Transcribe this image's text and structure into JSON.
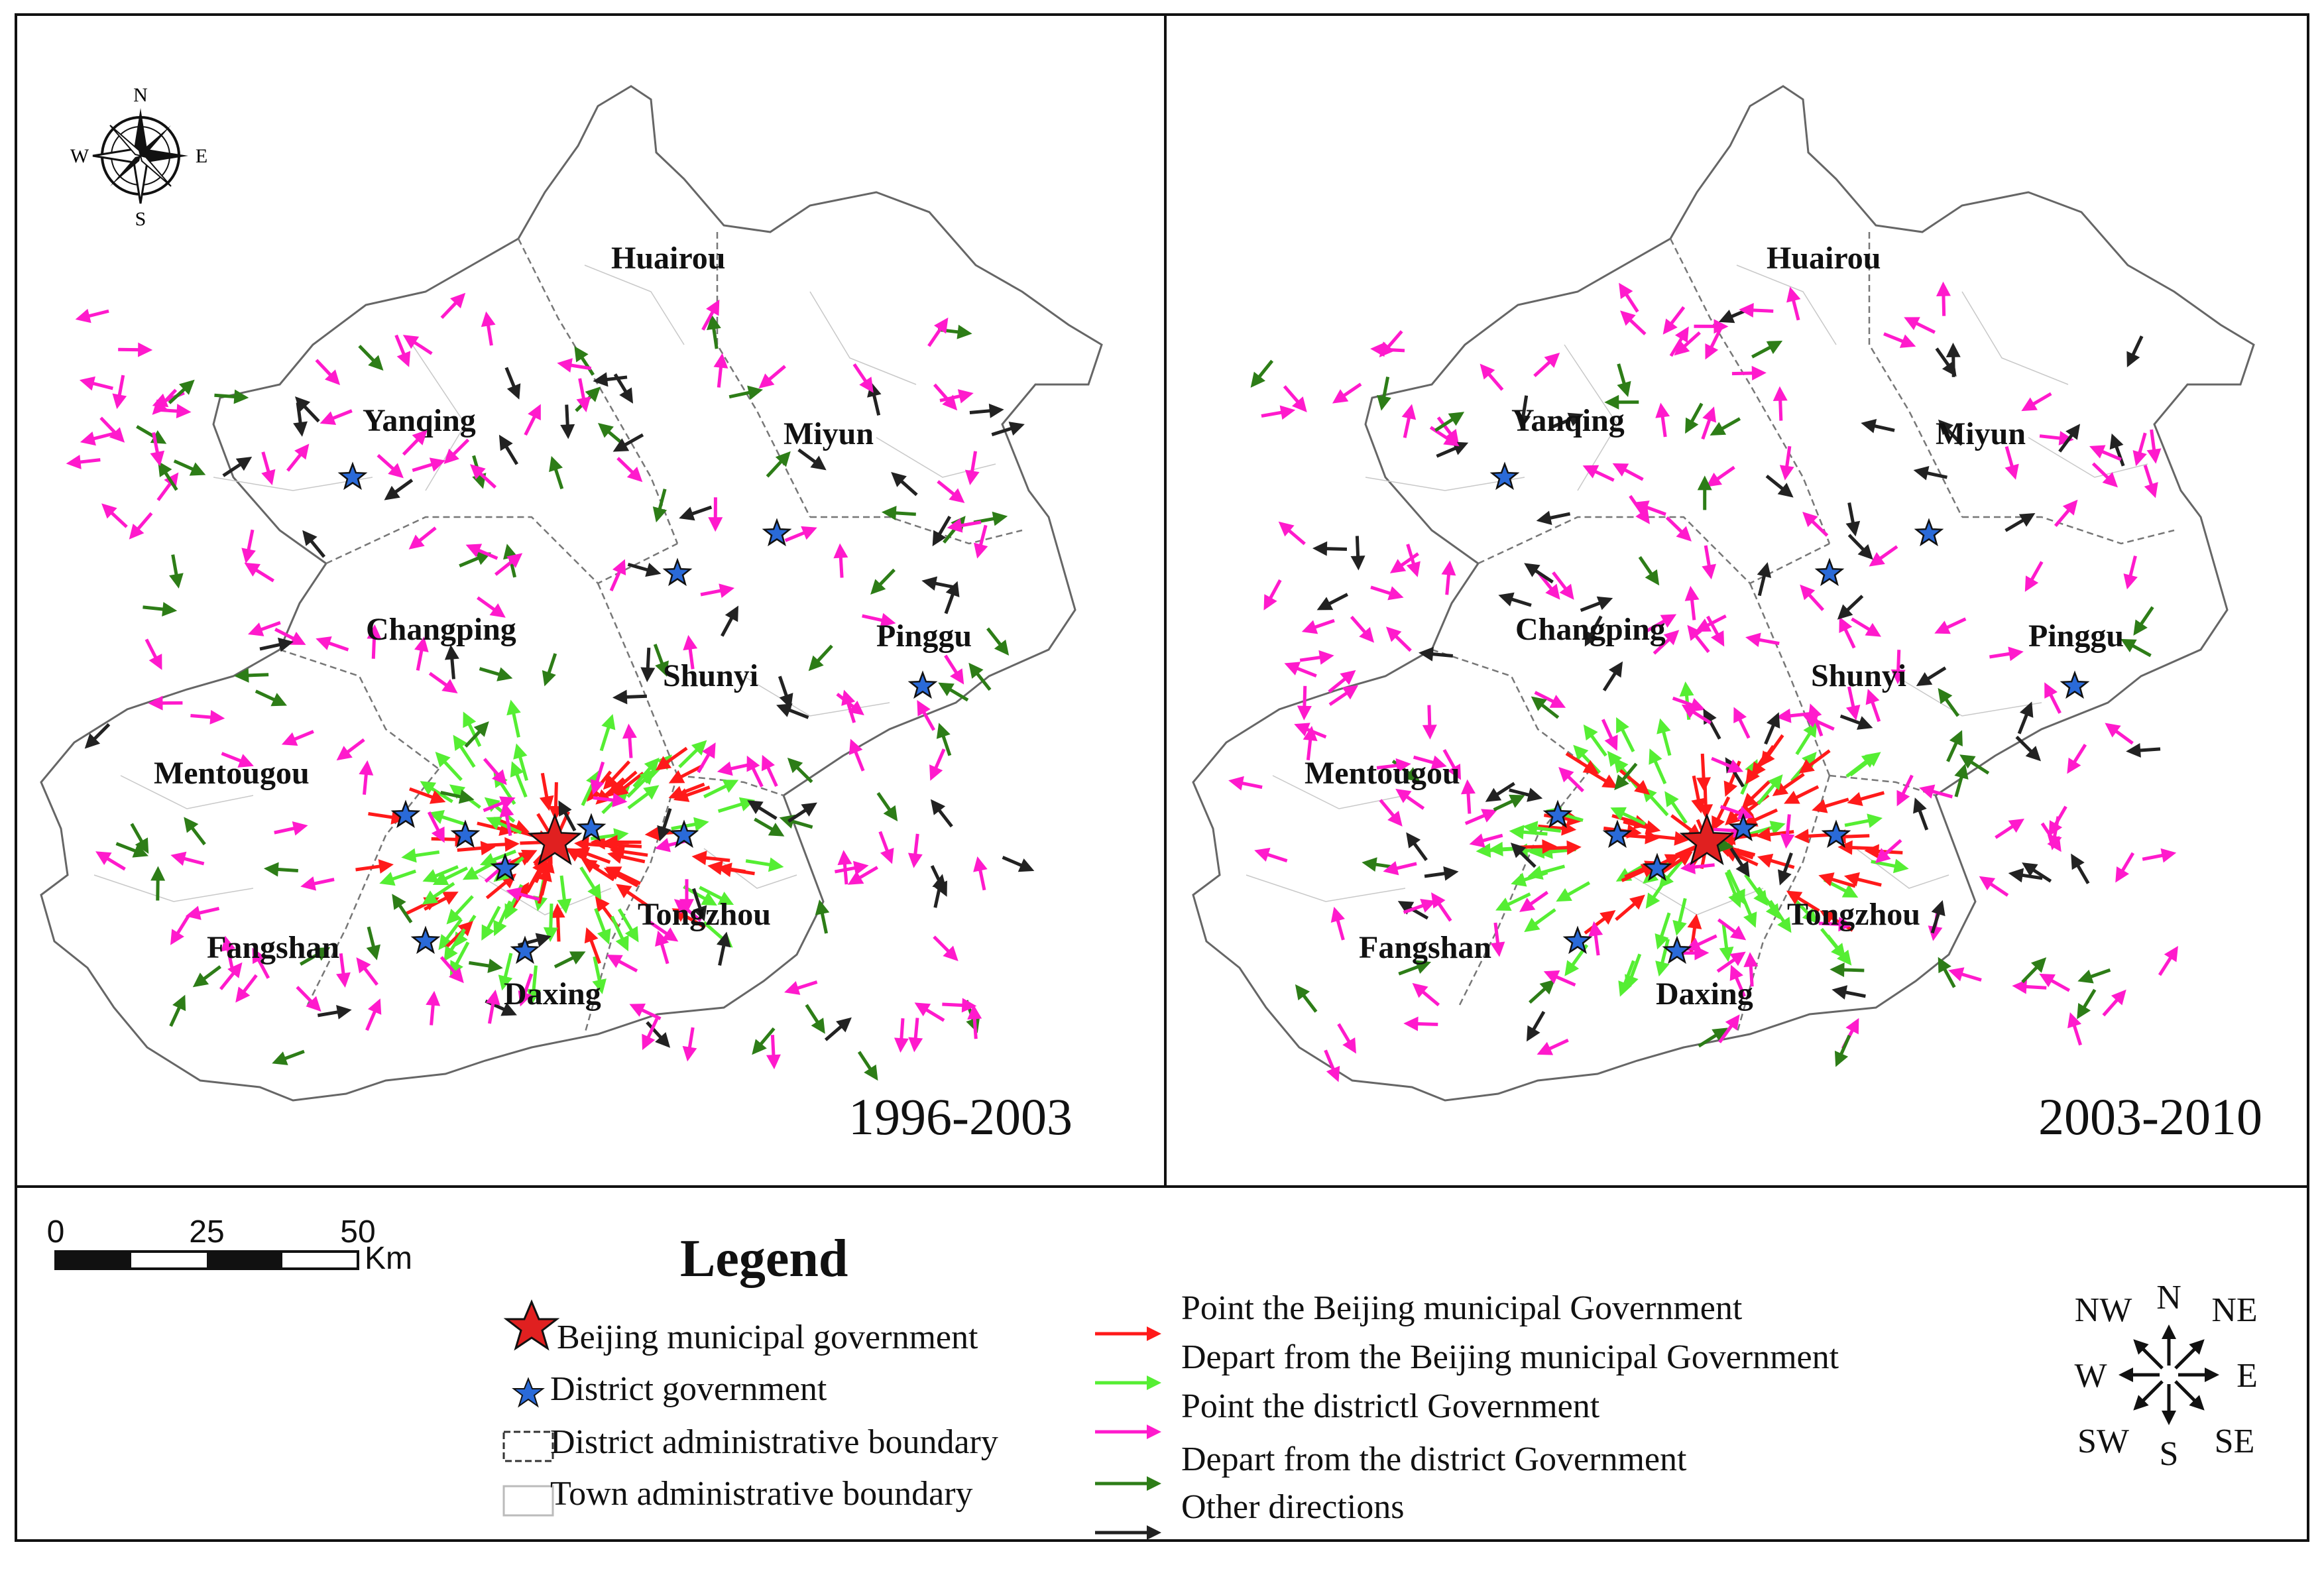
{
  "panels": [
    {
      "id": "left",
      "period": "1996-2003"
    },
    {
      "id": "right",
      "period": "2003-2010"
    }
  ],
  "districts": [
    "Huairou",
    "Yanqing",
    "Miyun",
    "Changping",
    "Pinggu",
    "Shunyi",
    "Mentougou",
    "Tongzhou",
    "Fangshan",
    "Daxing"
  ],
  "compass_rose": {
    "n": "N",
    "s": "S",
    "e": "E",
    "w": "W"
  },
  "scale_bar": {
    "ticks": [
      "0",
      "25",
      "50"
    ],
    "unit": "Km"
  },
  "legend": {
    "title": "Legend",
    "symbols": [
      {
        "label": "Beijing municipal government",
        "icon": "large-red-star",
        "color": "#e02020"
      },
      {
        "label": "District government",
        "icon": "small-blue-star",
        "color": "#2a6ad8"
      },
      {
        "label": "District administrative boundary",
        "icon": "dashed-box"
      },
      {
        "label": "Town administrative boundary",
        "icon": "light-box"
      }
    ],
    "arrows": [
      {
        "label": "Point the Beijing municipal Government",
        "color": "#ff1a1a"
      },
      {
        "label": "Depart from the Beijing municipal Government",
        "color": "#55ee33"
      },
      {
        "label": "Point the districtl Government",
        "color": "#ff1acc"
      },
      {
        "label": "Depart from the district Government",
        "color": "#2d7d17"
      },
      {
        "label": "Other directions",
        "color": "#222222"
      }
    ]
  },
  "direction_rose": {
    "labels": [
      "N",
      "NE",
      "E",
      "SE",
      "S",
      "SW",
      "W",
      "NW"
    ]
  }
}
